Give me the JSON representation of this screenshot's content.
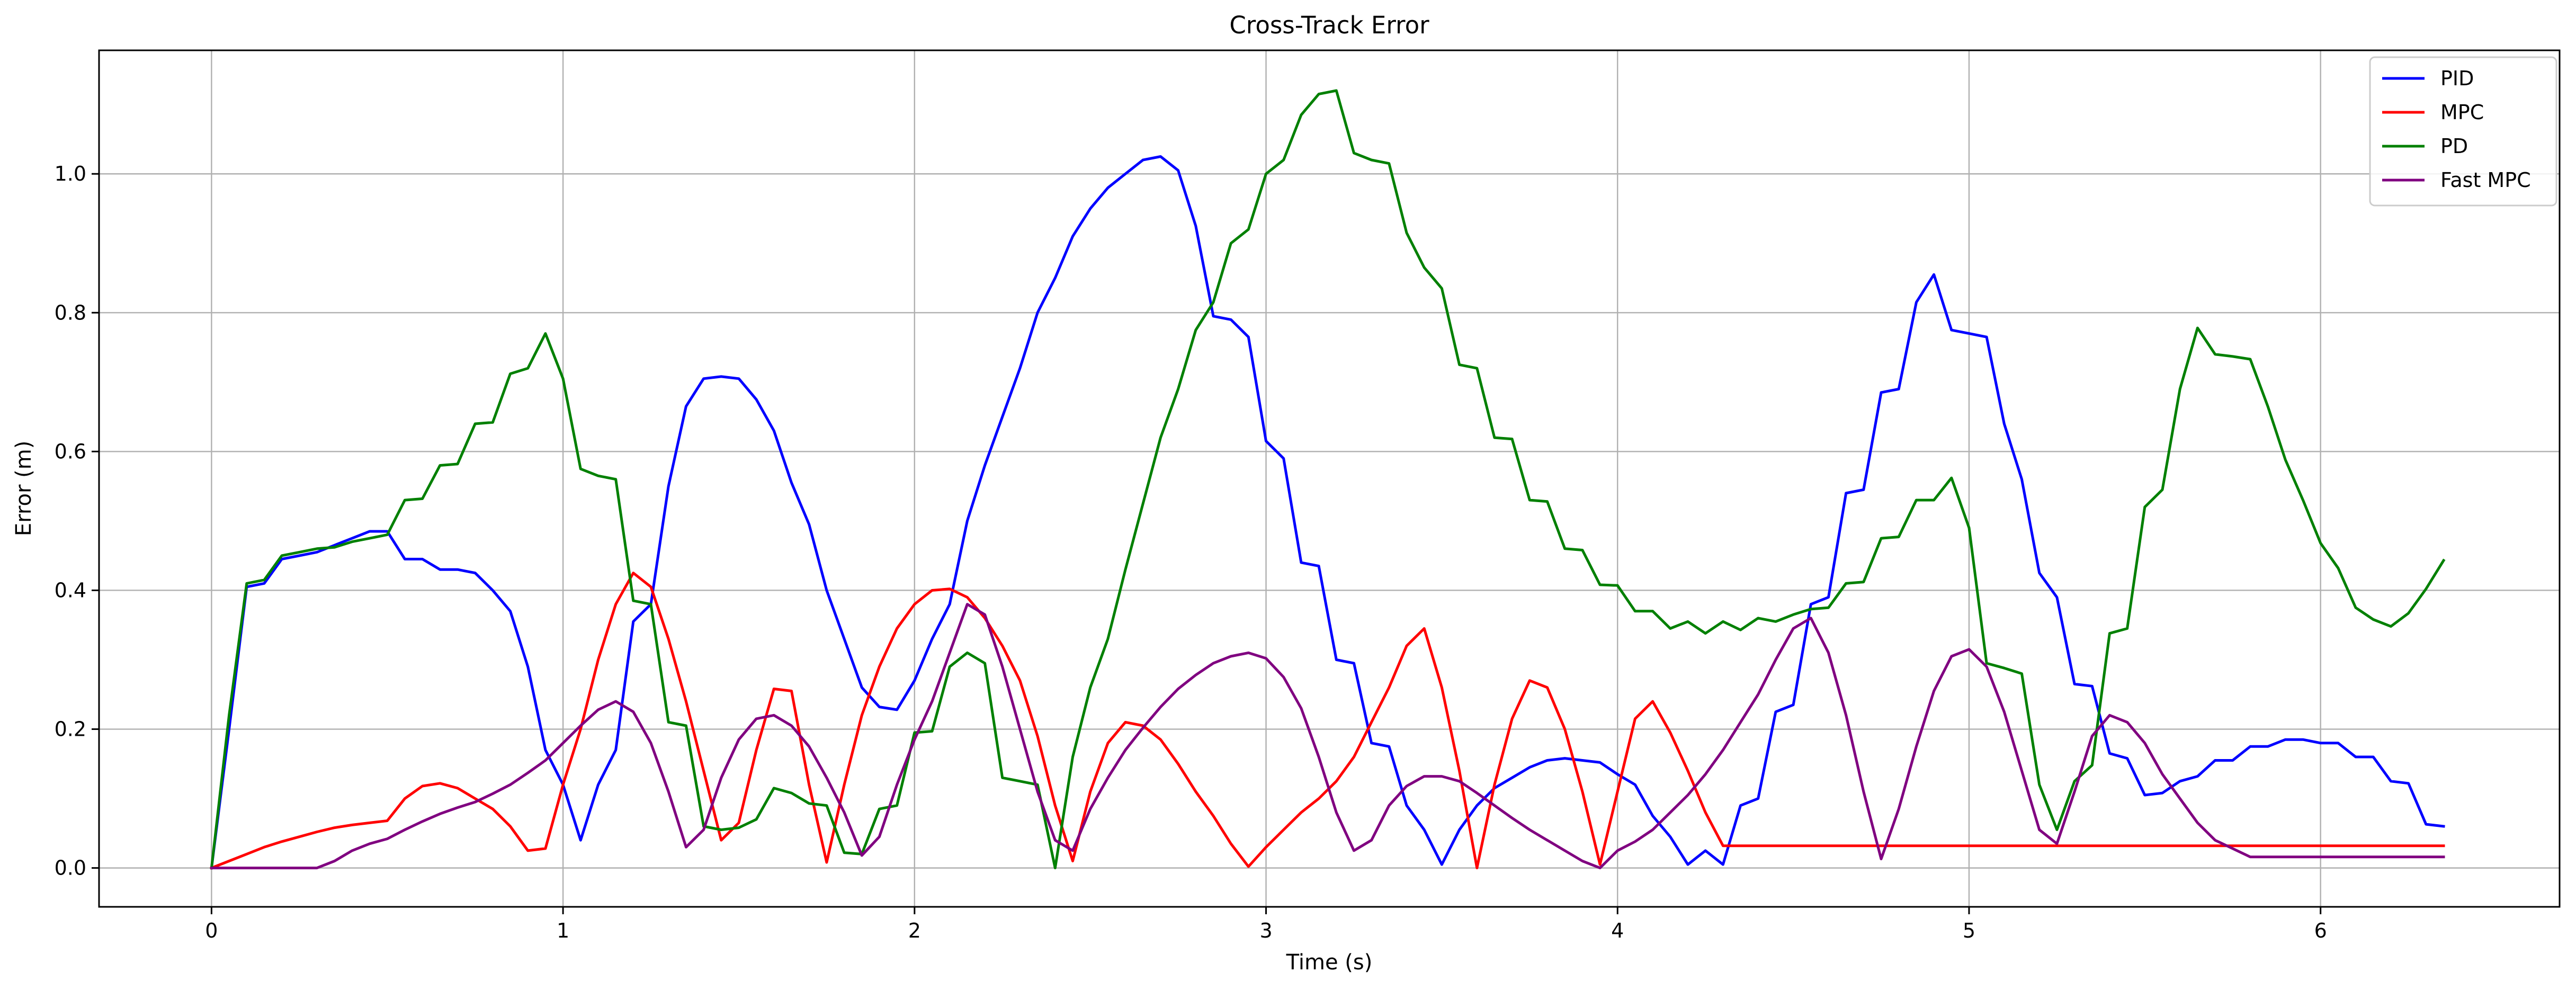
{
  "chart_data": {
    "type": "line",
    "title": "Cross-Track Error",
    "xlabel": "Time (s)",
    "ylabel": "Error (m)",
    "xlim": [
      -0.32,
      6.68
    ],
    "ylim": [
      -0.056,
      1.178
    ],
    "xticks": [
      0,
      1,
      2,
      3,
      4,
      5,
      6
    ],
    "xtick_labels": [
      "0",
      "1",
      "2",
      "3",
      "4",
      "5",
      "6"
    ],
    "yticks": [
      0.0,
      0.2,
      0.4,
      0.6,
      0.8,
      1.0
    ],
    "ytick_labels": [
      "0.0",
      "0.2",
      "0.4",
      "0.6",
      "0.8",
      "1.0"
    ],
    "grid": true,
    "legend_position": "top-right",
    "series": [
      {
        "name": "PID",
        "color": "#0000ff",
        "x": [
          0,
          0.05,
          0.1,
          0.15,
          0.2,
          0.25,
          0.3,
          0.35,
          0.4,
          0.45,
          0.5,
          0.55,
          0.6,
          0.65,
          0.7,
          0.75,
          0.8,
          0.85,
          0.9,
          0.95,
          1.0,
          1.05,
          1.1,
          1.15,
          1.2,
          1.25,
          1.3,
          1.35,
          1.4,
          1.45,
          1.5,
          1.55,
          1.6,
          1.65,
          1.7,
          1.75,
          1.8,
          1.85,
          1.9,
          1.95,
          2.0,
          2.05,
          2.1,
          2.15,
          2.2,
          2.25,
          2.3,
          2.35,
          2.4,
          2.45,
          2.5,
          2.55,
          2.6,
          2.65,
          2.7,
          2.75,
          2.8,
          2.85,
          2.9,
          2.95,
          3.0,
          3.05,
          3.1,
          3.15,
          3.2,
          3.25,
          3.3,
          3.35,
          3.4,
          3.45,
          3.5,
          3.55,
          3.6,
          3.65,
          3.7,
          3.75,
          3.8,
          3.85,
          3.9,
          3.95,
          4.0,
          4.05,
          4.1,
          4.15,
          4.2,
          4.25,
          4.3,
          4.35,
          4.4,
          4.45,
          4.5,
          4.55,
          4.6,
          4.65,
          4.7,
          4.75,
          4.8,
          4.85,
          4.9,
          4.95,
          5.0,
          5.05,
          5.1,
          5.15,
          5.2,
          5.25,
          5.3,
          5.35,
          5.4,
          5.45,
          5.5,
          5.55,
          5.6,
          5.65,
          5.7,
          5.75,
          5.8,
          5.85,
          5.9,
          5.95,
          6.0,
          6.05,
          6.1,
          6.15,
          6.2,
          6.25,
          6.3,
          6.35
        ],
        "y": [
          0.0,
          0.2,
          0.405,
          0.41,
          0.445,
          0.45,
          0.455,
          0.465,
          0.475,
          0.485,
          0.485,
          0.445,
          0.445,
          0.43,
          0.43,
          0.425,
          0.4,
          0.37,
          0.29,
          0.17,
          0.12,
          0.04,
          0.12,
          0.17,
          0.355,
          0.38,
          0.55,
          0.665,
          0.705,
          0.708,
          0.705,
          0.675,
          0.63,
          0.555,
          0.495,
          0.4,
          0.33,
          0.26,
          0.232,
          0.228,
          0.27,
          0.33,
          0.38,
          0.5,
          0.58,
          0.65,
          0.72,
          0.8,
          0.85,
          0.91,
          0.95,
          0.98,
          1.0,
          1.02,
          1.025,
          1.005,
          0.925,
          0.795,
          0.79,
          0.765,
          0.615,
          0.59,
          0.44,
          0.435,
          0.3,
          0.295,
          0.18,
          0.175,
          0.09,
          0.055,
          0.005,
          0.055,
          0.09,
          0.115,
          0.13,
          0.145,
          0.155,
          0.158,
          0.155,
          0.152,
          0.135,
          0.12,
          0.075,
          0.045,
          0.005,
          0.025,
          0.005,
          0.09,
          0.1,
          0.225,
          0.235,
          0.38,
          0.39,
          0.54,
          0.545,
          0.685,
          0.69,
          0.815,
          0.855,
          0.775,
          0.77,
          0.765,
          0.64,
          0.56,
          0.425,
          0.39,
          0.265,
          0.262,
          0.165,
          0.158,
          0.105,
          0.108,
          0.125,
          0.132,
          0.155,
          0.155,
          0.175,
          0.175,
          0.185,
          0.185,
          0.18,
          0.18,
          0.16,
          0.16,
          0.125,
          0.122,
          0.063,
          0.06
        ]
      },
      {
        "name": "MPC",
        "color": "#ff0000",
        "x": [
          0,
          0.05,
          0.1,
          0.15,
          0.2,
          0.25,
          0.3,
          0.35,
          0.4,
          0.45,
          0.5,
          0.55,
          0.6,
          0.65,
          0.7,
          0.75,
          0.8,
          0.85,
          0.9,
          0.95,
          1.0,
          1.05,
          1.1,
          1.15,
          1.2,
          1.25,
          1.3,
          1.35,
          1.4,
          1.45,
          1.5,
          1.55,
          1.6,
          1.65,
          1.7,
          1.75,
          1.8,
          1.85,
          1.9,
          1.95,
          2.0,
          2.05,
          2.1,
          2.15,
          2.2,
          2.25,
          2.3,
          2.35,
          2.4,
          2.45,
          2.5,
          2.55,
          2.6,
          2.65,
          2.7,
          2.75,
          2.8,
          2.85,
          2.9,
          2.95,
          3.0,
          3.05,
          3.1,
          3.15,
          3.2,
          3.25,
          3.3,
          3.35,
          3.4,
          3.45,
          3.5,
          3.55,
          3.6,
          3.65,
          3.7,
          3.75,
          3.8,
          3.85,
          3.9,
          3.95,
          4.0,
          4.05,
          4.1,
          4.15,
          4.2,
          4.25,
          4.3,
          4.35,
          4.4,
          4.5,
          4.6,
          4.7,
          4.8,
          4.9,
          5.0,
          5.1,
          5.2,
          5.3,
          5.4,
          5.5,
          5.6,
          5.7,
          5.8,
          5.9,
          6.0,
          6.1,
          6.2,
          6.3,
          6.35
        ],
        "y": [
          0.0,
          0.01,
          0.02,
          0.03,
          0.038,
          0.045,
          0.052,
          0.058,
          0.062,
          0.065,
          0.068,
          0.1,
          0.118,
          0.122,
          0.115,
          0.1,
          0.085,
          0.06,
          0.025,
          0.028,
          0.12,
          0.2,
          0.3,
          0.38,
          0.425,
          0.405,
          0.33,
          0.24,
          0.14,
          0.04,
          0.065,
          0.17,
          0.258,
          0.255,
          0.12,
          0.008,
          0.12,
          0.22,
          0.29,
          0.345,
          0.38,
          0.4,
          0.402,
          0.39,
          0.36,
          0.32,
          0.27,
          0.19,
          0.09,
          0.01,
          0.11,
          0.18,
          0.21,
          0.205,
          0.185,
          0.15,
          0.11,
          0.075,
          0.035,
          0.002,
          0.03,
          0.055,
          0.08,
          0.1,
          0.125,
          0.16,
          0.21,
          0.26,
          0.32,
          0.345,
          0.26,
          0.14,
          0.0,
          0.12,
          0.215,
          0.27,
          0.26,
          0.2,
          0.11,
          0.005,
          0.11,
          0.215,
          0.24,
          0.195,
          0.14,
          0.08,
          0.032,
          0.032,
          0.032,
          0.032,
          0.032,
          0.032,
          0.032,
          0.032,
          0.032,
          0.032,
          0.032,
          0.032,
          0.032,
          0.032,
          0.032,
          0.032,
          0.032,
          0.032,
          0.032,
          0.032,
          0.032,
          0.032,
          0.032
        ]
      },
      {
        "name": "PD",
        "color": "#008000",
        "x": [
          0,
          0.05,
          0.1,
          0.15,
          0.2,
          0.25,
          0.3,
          0.35,
          0.4,
          0.45,
          0.5,
          0.55,
          0.6,
          0.65,
          0.7,
          0.75,
          0.8,
          0.85,
          0.9,
          0.95,
          1.0,
          1.05,
          1.1,
          1.15,
          1.2,
          1.25,
          1.3,
          1.35,
          1.4,
          1.45,
          1.5,
          1.55,
          1.6,
          1.65,
          1.7,
          1.75,
          1.8,
          1.85,
          1.9,
          1.95,
          2.0,
          2.05,
          2.1,
          2.15,
          2.2,
          2.25,
          2.3,
          2.35,
          2.4,
          2.45,
          2.5,
          2.55,
          2.6,
          2.65,
          2.7,
          2.75,
          2.8,
          2.85,
          2.9,
          2.95,
          3.0,
          3.05,
          3.1,
          3.15,
          3.2,
          3.25,
          3.3,
          3.35,
          3.4,
          3.45,
          3.5,
          3.55,
          3.6,
          3.65,
          3.7,
          3.75,
          3.8,
          3.85,
          3.9,
          3.95,
          4.0,
          4.05,
          4.1,
          4.15,
          4.2,
          4.25,
          4.3,
          4.35,
          4.4,
          4.45,
          4.5,
          4.55,
          4.6,
          4.65,
          4.7,
          4.75,
          4.8,
          4.85,
          4.9,
          4.95,
          5.0,
          5.05,
          5.1,
          5.15,
          5.2,
          5.25,
          5.3,
          5.35,
          5.4,
          5.45,
          5.5,
          5.55,
          5.6,
          5.65,
          5.7,
          5.75,
          5.8,
          5.85,
          5.9,
          5.95,
          6.0,
          6.05,
          6.1,
          6.15,
          6.2,
          6.25,
          6.3,
          6.35
        ],
        "y": [
          0.0,
          0.22,
          0.41,
          0.415,
          0.45,
          0.455,
          0.46,
          0.462,
          0.47,
          0.475,
          0.48,
          0.53,
          0.532,
          0.58,
          0.582,
          0.64,
          0.642,
          0.712,
          0.72,
          0.77,
          0.705,
          0.575,
          0.565,
          0.56,
          0.385,
          0.38,
          0.21,
          0.205,
          0.06,
          0.055,
          0.058,
          0.07,
          0.115,
          0.108,
          0.093,
          0.09,
          0.022,
          0.02,
          0.085,
          0.09,
          0.195,
          0.197,
          0.29,
          0.31,
          0.295,
          0.13,
          0.125,
          0.12,
          0.0,
          0.16,
          0.26,
          0.33,
          0.43,
          0.525,
          0.62,
          0.69,
          0.775,
          0.815,
          0.9,
          0.92,
          1.0,
          1.02,
          1.085,
          1.115,
          1.12,
          1.03,
          1.02,
          1.015,
          0.915,
          0.865,
          0.835,
          0.725,
          0.72,
          0.62,
          0.618,
          0.53,
          0.528,
          0.46,
          0.458,
          0.408,
          0.407,
          0.37,
          0.37,
          0.345,
          0.355,
          0.338,
          0.355,
          0.343,
          0.36,
          0.355,
          0.365,
          0.373,
          0.375,
          0.41,
          0.412,
          0.475,
          0.477,
          0.53,
          0.53,
          0.562,
          0.49,
          0.295,
          0.288,
          0.28,
          0.12,
          0.055,
          0.125,
          0.148,
          0.338,
          0.345,
          0.52,
          0.545,
          0.69,
          0.778,
          0.74,
          0.737,
          0.733,
          0.665,
          0.588,
          0.53,
          0.468,
          0.432,
          0.375,
          0.358,
          0.348,
          0.367,
          0.402,
          0.443
        ]
      },
      {
        "name": "Fast MPC",
        "color": "#800080",
        "x": [
          0,
          0.05,
          0.1,
          0.15,
          0.2,
          0.25,
          0.3,
          0.35,
          0.4,
          0.45,
          0.5,
          0.55,
          0.6,
          0.65,
          0.7,
          0.75,
          0.8,
          0.85,
          0.9,
          0.95,
          1.0,
          1.05,
          1.1,
          1.15,
          1.2,
          1.25,
          1.3,
          1.35,
          1.4,
          1.45,
          1.5,
          1.55,
          1.6,
          1.65,
          1.7,
          1.75,
          1.8,
          1.85,
          1.9,
          1.95,
          2.0,
          2.05,
          2.1,
          2.15,
          2.2,
          2.25,
          2.3,
          2.35,
          2.4,
          2.45,
          2.5,
          2.55,
          2.6,
          2.65,
          2.7,
          2.75,
          2.8,
          2.85,
          2.9,
          2.95,
          3.0,
          3.05,
          3.1,
          3.15,
          3.2,
          3.25,
          3.3,
          3.35,
          3.4,
          3.45,
          3.5,
          3.55,
          3.6,
          3.65,
          3.7,
          3.75,
          3.8,
          3.85,
          3.9,
          3.95,
          4.0,
          4.05,
          4.1,
          4.15,
          4.2,
          4.25,
          4.3,
          4.35,
          4.4,
          4.45,
          4.5,
          4.55,
          4.6,
          4.65,
          4.7,
          4.75,
          4.8,
          4.85,
          4.9,
          4.95,
          5.0,
          5.05,
          5.1,
          5.15,
          5.2,
          5.25,
          5.3,
          5.35,
          5.4,
          5.45,
          5.5,
          5.55,
          5.6,
          5.65,
          5.7,
          5.8,
          5.9,
          6.0,
          6.1,
          6.2,
          6.3,
          6.35
        ],
        "y": [
          0.0,
          0.0,
          0.0,
          0.0,
          0.0,
          0.0,
          0.0,
          0.01,
          0.025,
          0.035,
          0.042,
          0.055,
          0.067,
          0.078,
          0.087,
          0.095,
          0.107,
          0.12,
          0.137,
          0.155,
          0.18,
          0.205,
          0.228,
          0.24,
          0.225,
          0.18,
          0.11,
          0.03,
          0.055,
          0.13,
          0.185,
          0.215,
          0.22,
          0.205,
          0.175,
          0.13,
          0.08,
          0.018,
          0.045,
          0.12,
          0.185,
          0.24,
          0.31,
          0.38,
          0.365,
          0.29,
          0.2,
          0.11,
          0.04,
          0.025,
          0.085,
          0.13,
          0.17,
          0.202,
          0.232,
          0.258,
          0.278,
          0.295,
          0.305,
          0.31,
          0.302,
          0.275,
          0.23,
          0.16,
          0.08,
          0.025,
          0.04,
          0.09,
          0.118,
          0.132,
          0.132,
          0.125,
          0.108,
          0.09,
          0.072,
          0.055,
          0.04,
          0.025,
          0.01,
          0.0,
          0.025,
          0.038,
          0.055,
          0.08,
          0.105,
          0.135,
          0.17,
          0.21,
          0.25,
          0.3,
          0.345,
          0.36,
          0.31,
          0.22,
          0.11,
          0.013,
          0.085,
          0.175,
          0.255,
          0.305,
          0.315,
          0.29,
          0.225,
          0.14,
          0.055,
          0.035,
          0.11,
          0.19,
          0.22,
          0.21,
          0.18,
          0.135,
          0.1,
          0.065,
          0.04,
          0.016,
          0.016,
          0.016,
          0.016,
          0.016,
          0.016,
          0.016
        ]
      }
    ]
  }
}
